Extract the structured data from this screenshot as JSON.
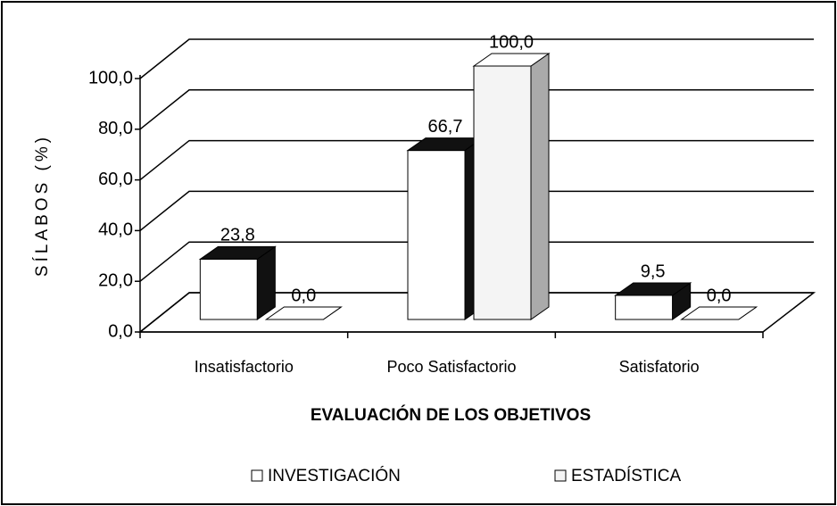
{
  "chart_data": {
    "type": "bar3d",
    "x_label": "EVALUACIÓN DE LOS OBJETIVOS",
    "y_label": "SÍLABOS (%)",
    "categories": [
      "Insatisfactorio",
      "Poco Satisfactorio",
      "Satisfatorio"
    ],
    "series": [
      {
        "name": "INVESTIGACIÓN",
        "color": "#ffffff",
        "values": [
          23.8,
          66.7,
          9.5
        ],
        "value_labels": [
          "23,8",
          "66,7",
          "9,5"
        ]
      },
      {
        "name": "ESTADÍSTICA",
        "color": "#f4f4f4",
        "values": [
          0.0,
          100.0,
          0.0
        ],
        "value_labels": [
          "0,0",
          "100,0",
          "0,0"
        ]
      }
    ],
    "ylim": [
      0,
      100
    ],
    "yticks": [
      {
        "value": 0,
        "label": "0,0"
      },
      {
        "value": 20,
        "label": "20,0"
      },
      {
        "value": 40,
        "label": "40,0"
      },
      {
        "value": 60,
        "label": "60,0"
      },
      {
        "value": 80,
        "label": "80,0"
      },
      {
        "value": 100,
        "label": "100,0"
      }
    ],
    "grid": true,
    "legend": "bottom"
  }
}
